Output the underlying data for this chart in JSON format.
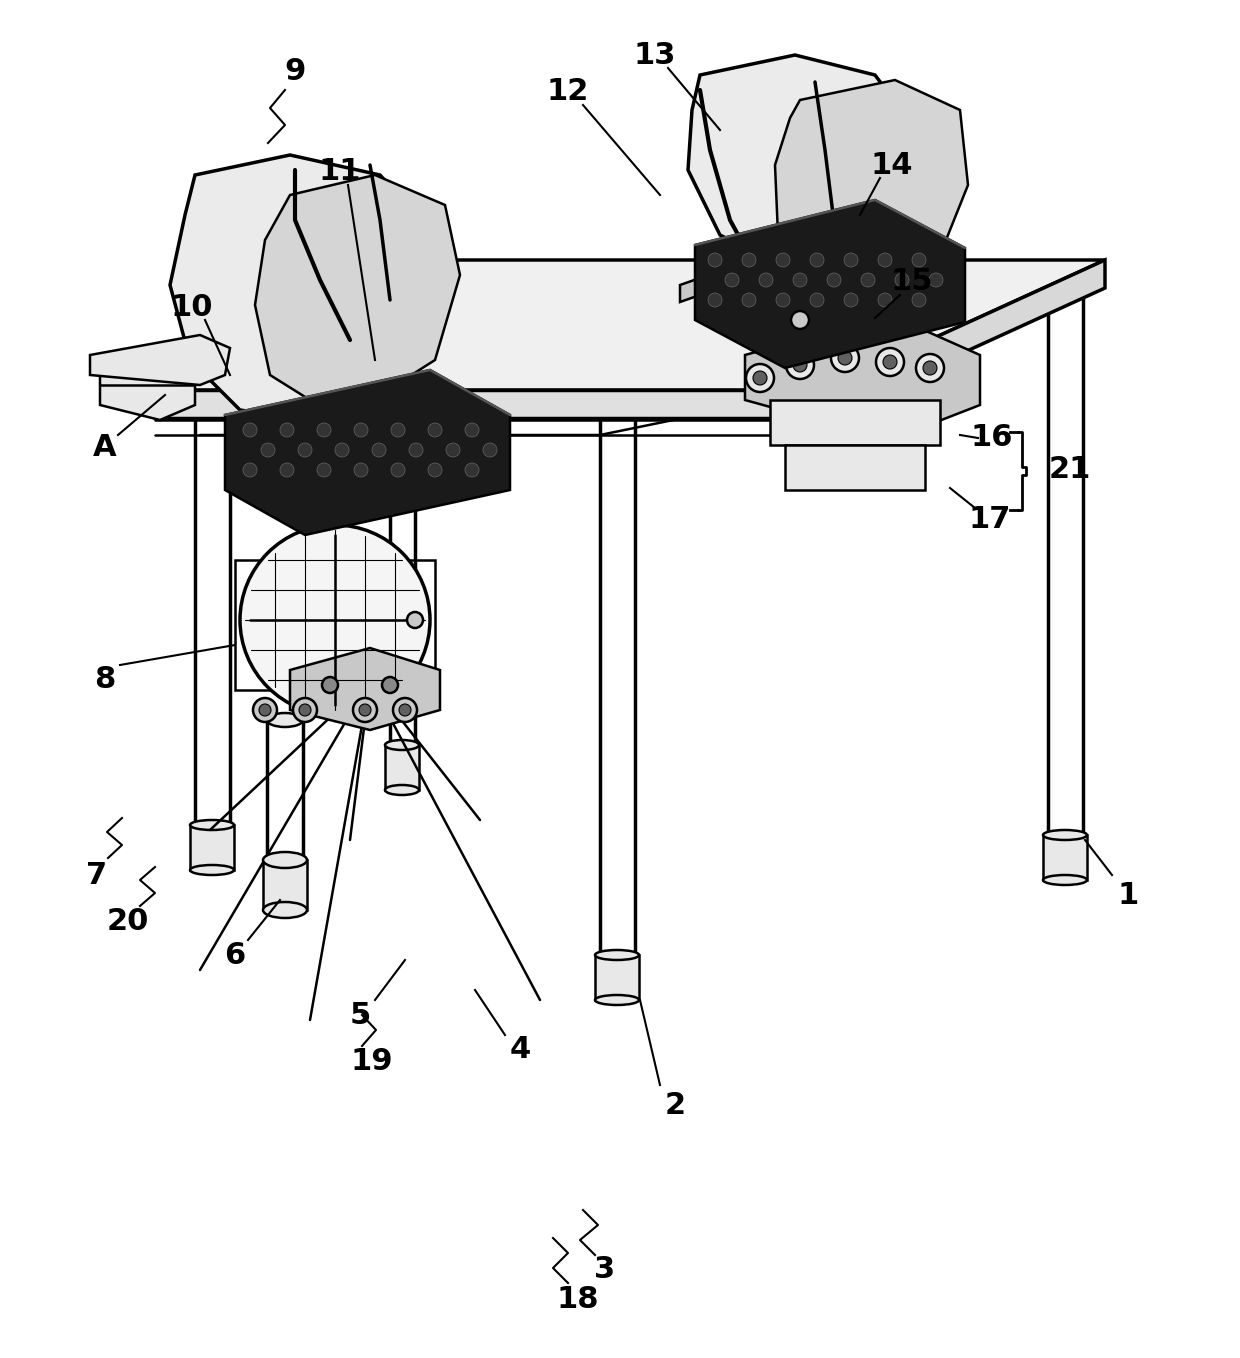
{
  "bg_color": "#ffffff",
  "line_color": "#000000",
  "figsize": [
    12.4,
    13.58
  ],
  "dpi": 100,
  "lw_main": 1.8,
  "lw_thick": 2.5,
  "gray_light": "#e8e8e8",
  "gray_mid": "#c8c8c8",
  "gray_dark": "#606060",
  "black_fill": "#1a1a1a",
  "font_size": 22
}
